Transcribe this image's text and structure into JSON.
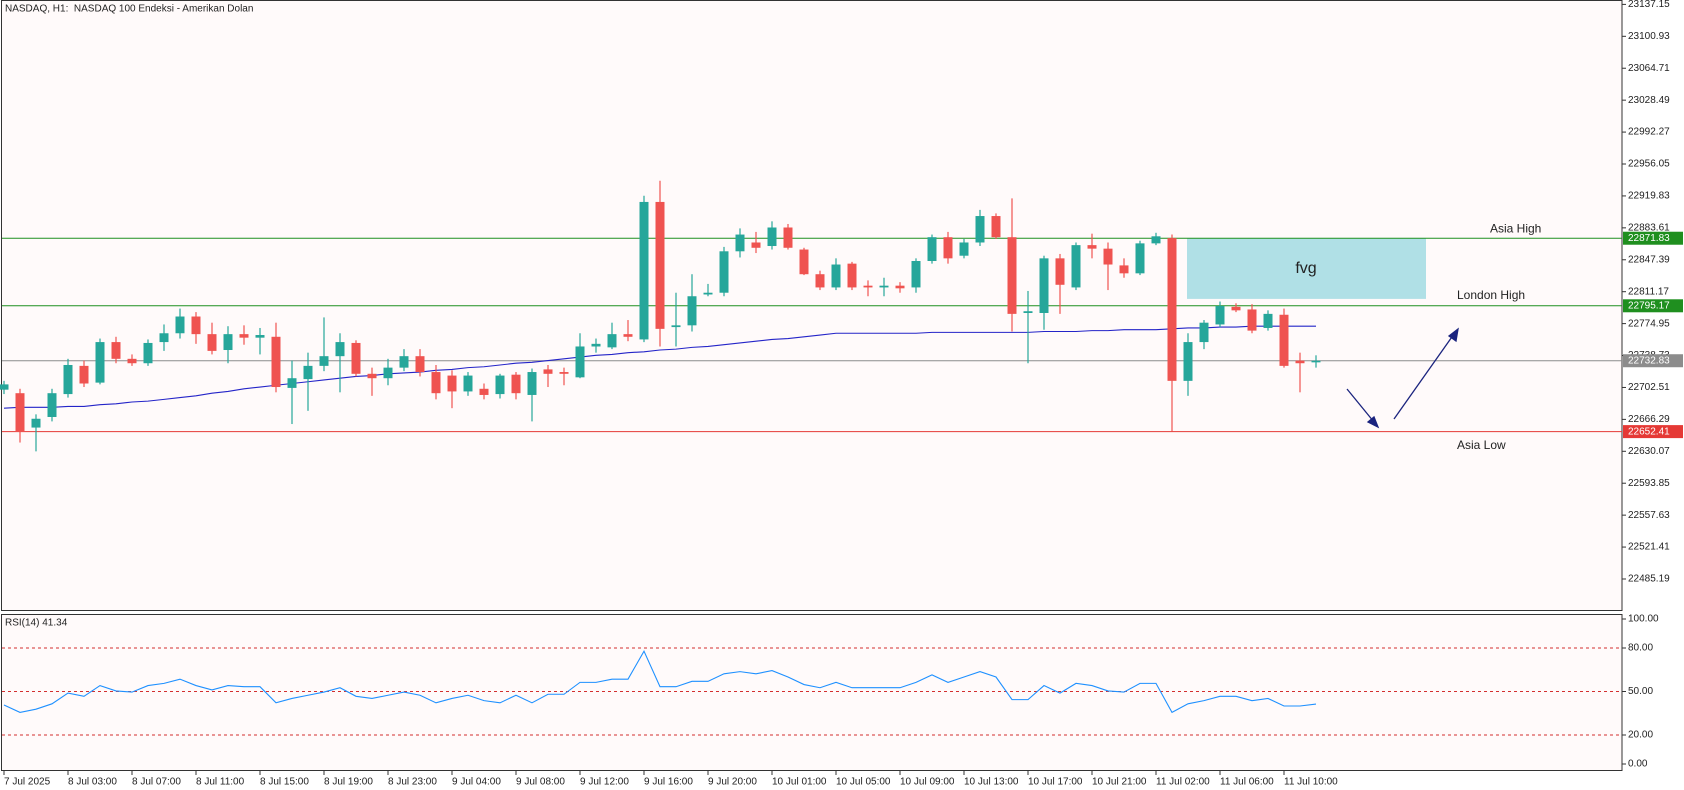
{
  "chart_data": [
    {
      "type": "candlestick",
      "title": "NASDAQ, H1:  NASDAQ 100 Endeksi - Amerikan Dolan",
      "categories": [
        "7 Jul 2025",
        null,
        null,
        null,
        "8 Jul 03:00",
        null,
        null,
        null,
        "8 Jul 07:00",
        null,
        null,
        null,
        "8 Jul 11:00",
        null,
        null,
        null,
        "8 Jul 15:00",
        null,
        null,
        null,
        "8 Jul 19:00",
        null,
        null,
        null,
        "8 Jul 23:00",
        null,
        null,
        null,
        "9 Jul 04:00",
        null,
        null,
        null,
        "9 Jul 08:00",
        null,
        null,
        null,
        "9 Jul 12:00",
        null,
        null,
        null,
        "9 Jul 16:00",
        null,
        null,
        null,
        "9 Jul 20:00",
        null,
        null,
        null,
        "10 Jul 01:00",
        null,
        null,
        null,
        "10 Jul 05:00",
        null,
        null,
        null,
        "10 Jul 09:00",
        null,
        null,
        null,
        "10 Jul 13:00",
        null,
        null,
        null,
        "10 Jul 17:00",
        null,
        null,
        null,
        "10 Jul 21:00",
        null,
        null,
        null,
        "11 Jul 02:00",
        null,
        null,
        null,
        "11 Jul 06:00",
        null,
        null,
        null,
        "11 Jul 10:00",
        null,
        null
      ],
      "open": [
        22700,
        22696,
        22657,
        22669,
        22695,
        22727,
        22708,
        22754,
        22735,
        22730,
        22754,
        22764,
        22783,
        22763,
        22745,
        22763,
        22759,
        22760,
        22702,
        22712,
        22727,
        22738,
        22753,
        22718,
        22713,
        22725,
        22738,
        22720,
        22716,
        22698,
        22701,
        22695,
        22717,
        22694,
        22723,
        22720,
        22714,
        22749,
        22748,
        22763,
        22757,
        22913,
        22771,
        22773,
        22808,
        22810,
        22857,
        22867,
        22863,
        22884,
        22859,
        22831,
        22816,
        22843,
        22818,
        22816,
        22818,
        22816,
        22846,
        22873,
        22852,
        22867,
        22897,
        22873,
        22787,
        22787,
        22849,
        22816,
        22864,
        22860,
        22841,
        22832,
        22866,
        22872,
        22710,
        22754,
        22774,
        22794,
        22791,
        22770,
        22785,
        22733,
        22731
      ],
      "high": [
        22710,
        22701,
        22672,
        22701,
        22735,
        22733,
        22758,
        22760,
        22740,
        22757,
        22774,
        22792,
        22788,
        22776,
        22772,
        22773,
        22770,
        22776,
        22733,
        22742,
        22782,
        22764,
        22756,
        22725,
        22735,
        22746,
        22746,
        22728,
        22722,
        22720,
        22707,
        22718,
        22720,
        22724,
        22728,
        22725,
        22764,
        22758,
        22776,
        22779,
        22920,
        22937,
        22810,
        22831,
        22820,
        22862,
        22883,
        22879,
        22891,
        22888,
        22861,
        22835,
        22849,
        22845,
        22824,
        22827,
        22822,
        22849,
        22876,
        22879,
        22871,
        22904,
        22900,
        22917,
        22812,
        22852,
        22854,
        22867,
        22877,
        22867,
        22849,
        22869,
        22878,
        22876,
        22764,
        22779,
        22800,
        22798,
        22797,
        22790,
        22792,
        22742,
        22739
      ],
      "low": [
        22695,
        22640,
        22630,
        22664,
        22691,
        22703,
        22706,
        22730,
        22727,
        22727,
        22744,
        22758,
        22752,
        22740,
        22730,
        22751,
        22740,
        22697,
        22661,
        22676,
        22721,
        22697,
        22715,
        22693,
        22705,
        22721,
        22715,
        22689,
        22679,
        22693,
        22689,
        22690,
        22689,
        22664,
        22703,
        22705,
        22713,
        22742,
        22746,
        22755,
        22754,
        22749,
        22749,
        22766,
        22806,
        22806,
        22850,
        22855,
        22859,
        22859,
        22830,
        22813,
        22813,
        22813,
        22806,
        22806,
        22810,
        22810,
        22843,
        22843,
        22849,
        22863,
        22871,
        22766,
        22730,
        22768,
        22786,
        22813,
        22849,
        22813,
        22827,
        22830,
        22864,
        22652.41,
        22693,
        22746,
        22771,
        22788,
        22764,
        22767,
        22725,
        22697,
        22725
      ],
      "close": [
        22706,
        22652,
        22667,
        22696,
        22728,
        22707,
        22754,
        22735,
        22730,
        22753,
        22764,
        22783,
        22763,
        22744,
        22763,
        22759,
        22762,
        22703,
        22713,
        22727,
        22738,
        22754,
        22718,
        22713,
        22725,
        22738,
        22720,
        22696,
        22698,
        22716,
        22694,
        22716,
        22696,
        22720,
        22718,
        22718,
        22749,
        22752,
        22763,
        22760,
        22913,
        22769,
        22773,
        22806,
        22810,
        22857,
        22876,
        22861,
        22884,
        22861,
        22831,
        22816,
        22842,
        22816,
        22816,
        22818,
        22815,
        22846,
        22873,
        22849,
        22867,
        22897,
        22873,
        22786,
        22789,
        22849,
        22819,
        22864,
        22860,
        22842,
        22832,
        22866,
        22874,
        22710,
        22754,
        22776,
        22795,
        22790,
        22767,
        22786,
        22727,
        22730,
        22732.83
      ],
      "up_color": "#26a69a",
      "down_color": "#ef5350",
      "ma": {
        "color": "#2424c8",
        "values": [
          22679,
          22680,
          22680,
          22680,
          22681,
          22681,
          22683,
          22684,
          22686,
          22687,
          22689,
          22691,
          22693,
          22696,
          22698,
          22701,
          22703,
          22705,
          22707,
          22709,
          22711,
          22713,
          22715,
          22716,
          22718,
          22719,
          22720,
          22722,
          22723,
          22725,
          22726,
          22728,
          22730,
          22731,
          22733,
          22735,
          22737,
          22739,
          22740,
          22742,
          22743,
          22745,
          22746,
          22748,
          22749,
          22751,
          22753,
          22755,
          22757,
          22758,
          22760,
          22762,
          22764,
          22764,
          22764,
          22764,
          22764,
          22764,
          22765,
          22765,
          22765,
          22765,
          22765,
          22765,
          22765,
          22766,
          22766,
          22766,
          22767,
          22767,
          22768,
          22768,
          22768,
          22769,
          22770,
          22770,
          22771,
          22771,
          22772,
          22772,
          22772,
          22772,
          22772
        ]
      },
      "levels": [
        {
          "label": "Asia High",
          "value": 22871.83,
          "color": "#1f8f1f"
        },
        {
          "label": "London High",
          "value": 22795.17,
          "color": "#1f8f1f"
        },
        {
          "value": 22732.83,
          "color": "#8c8c8c"
        },
        {
          "label": "Asia Low",
          "value": 22652.41,
          "color": "#e53935"
        }
      ],
      "fvg": {
        "label": "fvg",
        "top": 22871.83,
        "bottom": 22803,
        "color": "#b0e0e6"
      },
      "ylim": [
        22450,
        23141
      ],
      "yticks": [
        23137.15,
        23100.93,
        23064.71,
        23028.49,
        22992.27,
        22956.05,
        22919.83,
        22883.61,
        22847.39,
        22811.17,
        22774.95,
        22738.73,
        22702.51,
        22666.29,
        22630.07,
        22593.85,
        22557.63,
        22521.41,
        22485.19
      ]
    },
    {
      "type": "line",
      "title": "RSI(14) 41.34",
      "color": "#1e90ff",
      "values": [
        40.7,
        35.6,
        37.8,
        41.5,
        48.9,
        46.7,
        54.1,
        50.4,
        49.6,
        54.1,
        55.6,
        58.5,
        54.1,
        51.1,
        54.1,
        53.3,
        53.3,
        42.2,
        45.2,
        47.4,
        49.6,
        52.6,
        46.7,
        45.2,
        47.4,
        49.6,
        47.4,
        42.2,
        45.2,
        47.4,
        43.7,
        42.2,
        47.4,
        42.2,
        48.1,
        48.1,
        56.3,
        56.3,
        58.5,
        58.5,
        77.8,
        53.3,
        53.3,
        57.0,
        57.0,
        62.2,
        63.7,
        62.2,
        64.4,
        60.0,
        54.8,
        52.6,
        56.3,
        52.6,
        52.6,
        52.6,
        52.6,
        56.3,
        61.5,
        56.3,
        60.0,
        63.7,
        60.0,
        44.4,
        44.4,
        54.1,
        48.9,
        55.6,
        54.1,
        50.4,
        49.6,
        55.6,
        55.6,
        35.6,
        41.5,
        43.7,
        46.7,
        46.7,
        43.7,
        45.2,
        40.0,
        40.0,
        41.34
      ],
      "levels": [
        80,
        50,
        20
      ],
      "level_color": "#d32f2f",
      "ylim": [
        0,
        100
      ],
      "yticks": [
        {
          "value": 100,
          "label": "100.00"
        },
        {
          "value": 80,
          "label": "80.00"
        },
        {
          "value": 50,
          "label": "50.00"
        },
        {
          "value": 20,
          "label": "20.00"
        },
        {
          "value": 0,
          "label": "0.00"
        }
      ]
    }
  ]
}
